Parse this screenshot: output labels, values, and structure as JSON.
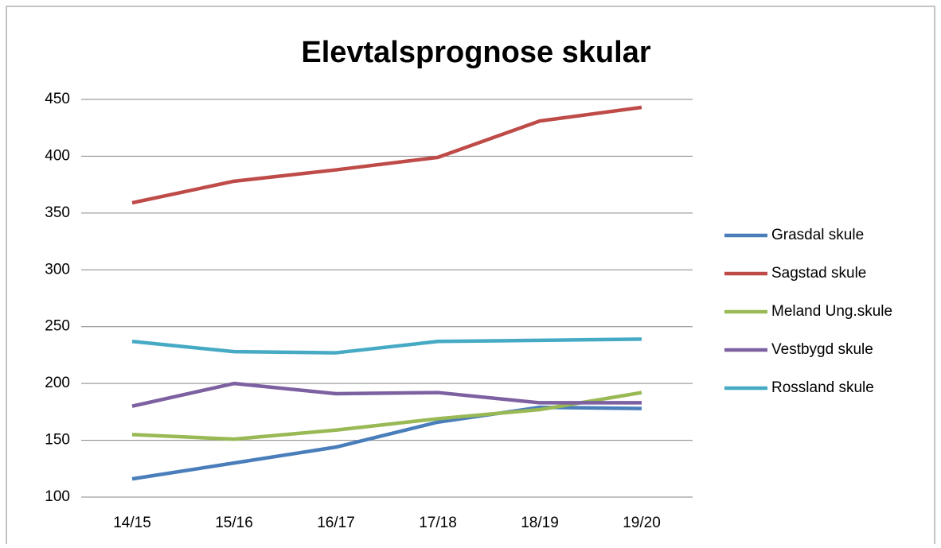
{
  "chart_data": {
    "type": "line",
    "title": "Elevtalsprognose skular",
    "categories": [
      "14/15",
      "15/16",
      "16/17",
      "17/18",
      "18/19",
      "19/20"
    ],
    "series": [
      {
        "name": "Grasdal skule",
        "color": "#4a7ebb",
        "values": [
          116,
          130,
          144,
          166,
          179,
          178
        ]
      },
      {
        "name": "Sagstad skule",
        "color": "#be4b48",
        "values": [
          359,
          378,
          388,
          399,
          431,
          443
        ]
      },
      {
        "name": "Meland Ung.skule",
        "color": "#98b954",
        "values": [
          155,
          151,
          159,
          169,
          177,
          192
        ]
      },
      {
        "name": "Vestbygd skule",
        "color": "#7d60a0",
        "values": [
          180,
          200,
          191,
          192,
          183,
          183
        ]
      },
      {
        "name": "Rossland skule",
        "color": "#46aac5",
        "values": [
          237,
          228,
          227,
          237,
          238,
          239
        ]
      }
    ],
    "ylim": [
      100,
      450
    ],
    "yticks": [
      100,
      150,
      200,
      250,
      300,
      350,
      400,
      450
    ],
    "grid": true,
    "legend": "right"
  }
}
